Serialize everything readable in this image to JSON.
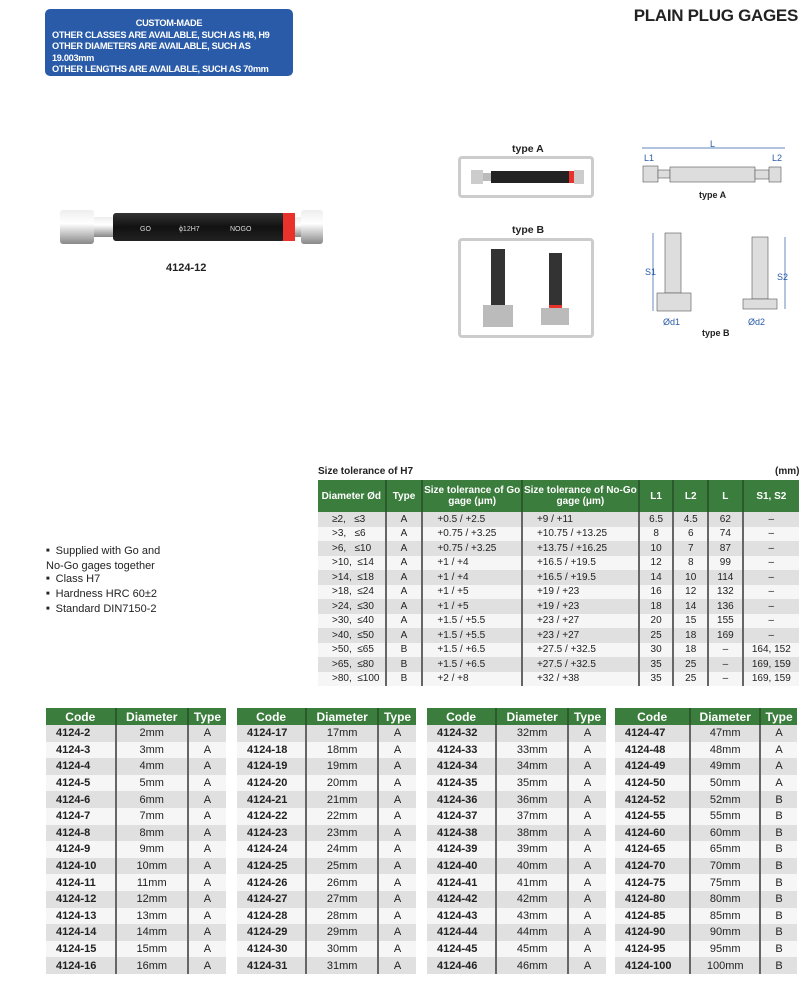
{
  "header": {
    "title": "PLAIN PLUG GAGES"
  },
  "custom_box": {
    "heading": "CUSTOM-MADE",
    "lines": [
      "OTHER CLASSES ARE AVAILABLE, SUCH AS H8, H9",
      "OTHER DIAMETERS ARE AVAILABLE, SUCH AS 19.003mm",
      "OTHER LENGTHS ARE AVAILABLE, SUCH AS 70mm"
    ],
    "color": "#2a5ba8"
  },
  "product": {
    "caption": "4124-12",
    "go_label": "GO",
    "size_label": "ϕ12H7",
    "nogo_label": "NOGO"
  },
  "types": {
    "type_a": "type A",
    "type_b": "type B"
  },
  "diagram": {
    "L": "L",
    "L1": "L1",
    "L2": "L2",
    "d1": "Ød1",
    "d2": "Ød2",
    "S1": "S1",
    "S2": "S2"
  },
  "features": [
    "Supplied with Go and No-Go gages together",
    "Class H7",
    "Hardness HRC 60±2",
    "Standard DIN7150-2"
  ],
  "tolerance": {
    "title": "Size tolerance of H7",
    "unit": "(mm)",
    "headers": [
      "Diameter Ød",
      "Type",
      "Size tolerance of Go gage (μm)",
      "Size tolerance of No-Go gage (μm)",
      "L1",
      "L2",
      "L",
      "S1, S2"
    ],
    "rows": [
      [
        "≥2,   ≤3",
        "A",
        "+0.5 / +2.5",
        "+9 / +11",
        "6.5",
        "4.5",
        "62",
        "–"
      ],
      [
        ">3,   ≤6",
        "A",
        "+0.75 / +3.25",
        "+10.75 / +13.25",
        "8",
        "6",
        "74",
        "–"
      ],
      [
        ">6,   ≤10",
        "A",
        "+0.75 / +3.25",
        "+13.75 / +16.25",
        "10",
        "7",
        "87",
        "–"
      ],
      [
        ">10,  ≤14",
        "A",
        "+1 / +4",
        "+16.5 / +19.5",
        "12",
        "8",
        "99",
        "–"
      ],
      [
        ">14,  ≤18",
        "A",
        "+1 / +4",
        "+16.5 / +19.5",
        "14",
        "10",
        "114",
        "–"
      ],
      [
        ">18,  ≤24",
        "A",
        "+1 / +5",
        "+19 / +23",
        "16",
        "12",
        "132",
        "–"
      ],
      [
        ">24,  ≤30",
        "A",
        "+1 / +5",
        "+19 / +23",
        "18",
        "14",
        "136",
        "–"
      ],
      [
        ">30,  ≤40",
        "A",
        "+1.5 / +5.5",
        "+23 / +27",
        "20",
        "15",
        "155",
        "–"
      ],
      [
        ">40,  ≤50",
        "A",
        "+1.5 / +5.5",
        "+23 / +27",
        "25",
        "18",
        "169",
        "–"
      ],
      [
        ">50,  ≤65",
        "B",
        "+1.5 / +6.5",
        "+27.5 / +32.5",
        "30",
        "18",
        "–",
        "164, 152"
      ],
      [
        ">65,  ≤80",
        "B",
        "+1.5 / +6.5",
        "+27.5 / +32.5",
        "35",
        "25",
        "–",
        "169, 159"
      ],
      [
        ">80,  ≤100",
        "B",
        "+2 / +8",
        "+32 / +38",
        "35",
        "25",
        "–",
        "169, 159"
      ]
    ]
  },
  "code_headers": [
    "Code",
    "Diameter",
    "Type"
  ],
  "code_tables": [
    [
      [
        "4124-2",
        "2mm",
        "A"
      ],
      [
        "4124-3",
        "3mm",
        "A"
      ],
      [
        "4124-4",
        "4mm",
        "A"
      ],
      [
        "4124-5",
        "5mm",
        "A"
      ],
      [
        "4124-6",
        "6mm",
        "A"
      ],
      [
        "4124-7",
        "7mm",
        "A"
      ],
      [
        "4124-8",
        "8mm",
        "A"
      ],
      [
        "4124-9",
        "9mm",
        "A"
      ],
      [
        "4124-10",
        "10mm",
        "A"
      ],
      [
        "4124-11",
        "11mm",
        "A"
      ],
      [
        "4124-12",
        "12mm",
        "A"
      ],
      [
        "4124-13",
        "13mm",
        "A"
      ],
      [
        "4124-14",
        "14mm",
        "A"
      ],
      [
        "4124-15",
        "15mm",
        "A"
      ],
      [
        "4124-16",
        "16mm",
        "A"
      ]
    ],
    [
      [
        "4124-17",
        "17mm",
        "A"
      ],
      [
        "4124-18",
        "18mm",
        "A"
      ],
      [
        "4124-19",
        "19mm",
        "A"
      ],
      [
        "4124-20",
        "20mm",
        "A"
      ],
      [
        "4124-21",
        "21mm",
        "A"
      ],
      [
        "4124-22",
        "22mm",
        "A"
      ],
      [
        "4124-23",
        "23mm",
        "A"
      ],
      [
        "4124-24",
        "24mm",
        "A"
      ],
      [
        "4124-25",
        "25mm",
        "A"
      ],
      [
        "4124-26",
        "26mm",
        "A"
      ],
      [
        "4124-27",
        "27mm",
        "A"
      ],
      [
        "4124-28",
        "28mm",
        "A"
      ],
      [
        "4124-29",
        "29mm",
        "A"
      ],
      [
        "4124-30",
        "30mm",
        "A"
      ],
      [
        "4124-31",
        "31mm",
        "A"
      ]
    ],
    [
      [
        "4124-32",
        "32mm",
        "A"
      ],
      [
        "4124-33",
        "33mm",
        "A"
      ],
      [
        "4124-34",
        "34mm",
        "A"
      ],
      [
        "4124-35",
        "35mm",
        "A"
      ],
      [
        "4124-36",
        "36mm",
        "A"
      ],
      [
        "4124-37",
        "37mm",
        "A"
      ],
      [
        "4124-38",
        "38mm",
        "A"
      ],
      [
        "4124-39",
        "39mm",
        "A"
      ],
      [
        "4124-40",
        "40mm",
        "A"
      ],
      [
        "4124-41",
        "41mm",
        "A"
      ],
      [
        "4124-42",
        "42mm",
        "A"
      ],
      [
        "4124-43",
        "43mm",
        "A"
      ],
      [
        "4124-44",
        "44mm",
        "A"
      ],
      [
        "4124-45",
        "45mm",
        "A"
      ],
      [
        "4124-46",
        "46mm",
        "A"
      ]
    ],
    [
      [
        "4124-47",
        "47mm",
        "A"
      ],
      [
        "4124-48",
        "48mm",
        "A"
      ],
      [
        "4124-49",
        "49mm",
        "A"
      ],
      [
        "4124-50",
        "50mm",
        "A"
      ],
      [
        "4124-52",
        "52mm",
        "B"
      ],
      [
        "4124-55",
        "55mm",
        "B"
      ],
      [
        "4124-60",
        "60mm",
        "B"
      ],
      [
        "4124-65",
        "65mm",
        "B"
      ],
      [
        "4124-70",
        "70mm",
        "B"
      ],
      [
        "4124-75",
        "75mm",
        "B"
      ],
      [
        "4124-80",
        "80mm",
        "B"
      ],
      [
        "4124-85",
        "85mm",
        "B"
      ],
      [
        "4124-90",
        "90mm",
        "B"
      ],
      [
        "4124-95",
        "95mm",
        "B"
      ],
      [
        "4124-100",
        "100mm",
        "B"
      ]
    ]
  ],
  "colors": {
    "table_header": "#3a7d3c",
    "accent_red": "#e8322b",
    "brand_blue": "#2a5ba8"
  }
}
